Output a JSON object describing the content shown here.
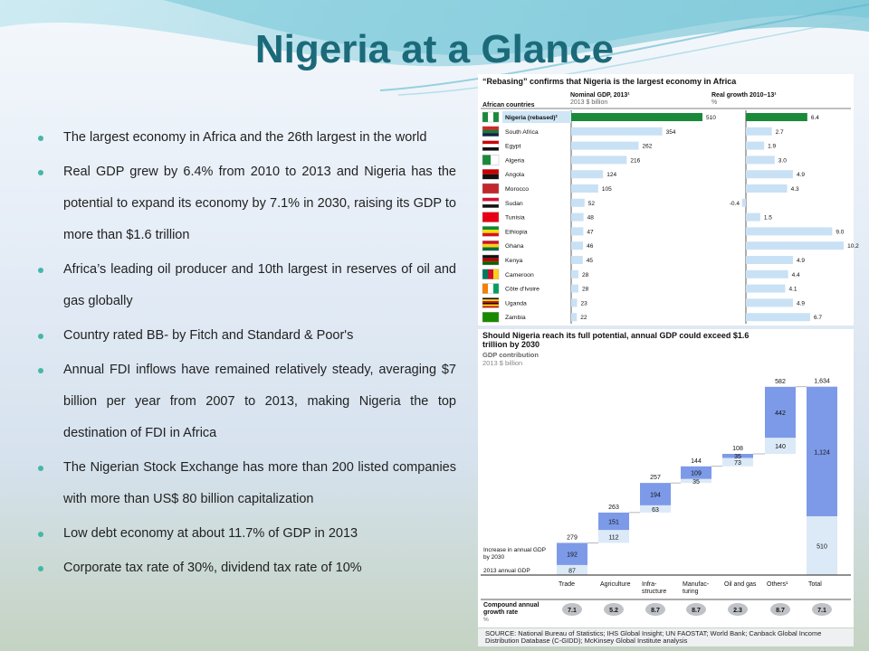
{
  "title": "Nigeria at a Glance",
  "bullets": [
    "The largest economy in Africa and the 26th largest in the world",
    "Real GDP grew by 6.4% from 2010 to 2013 and Nigeria has the potential to expand its economy by 7.1% in 2030, raising its GDP to more than $1.6 trillion",
    "Africa’s leading oil producer and 10th largest in reserves of oil and gas globally",
    "Country rated BB- by Fitch and Standard & Poor's",
    "Annual FDI inflows have remained relatively steady, averaging $7 billion per year from 2007 to 2013, making Nigeria the top destination of FDI in Africa",
    "The Nigerian Stock Exchange has more than 200 listed companies with more than US$ 80 billion capitalization",
    "Low debt economy at about 11.7% of GDP in 2013",
    "Corporate tax rate of 30%, dividend tax rate of 10%"
  ],
  "colors": {
    "title": "#1b6a7a",
    "bullet": "#45b6a8",
    "nigeria": "#1a8a3a",
    "bar_light": "#c9e1f5",
    "bar_mid": "#7d9ae8",
    "base": "#dce9f7"
  },
  "source": "SOURCE: National Bureau of Statistics; IHS Global Insight; UN FAOSTAT; World Bank; Canback Global Income Distribution Database (C-GIDD); McKinsey Global Institute analysis",
  "chart_data": [
    {
      "type": "bar",
      "title": "“Rebasing” confirms that Nigeria is the largest economy in Africa",
      "col_header": "African countries",
      "series": [
        {
          "name": "Nominal GDP, 2013¹",
          "unit": "2013 $ billion",
          "values": [
            510,
            354,
            262,
            216,
            124,
            105,
            52,
            48,
            47,
            46,
            45,
            28,
            28,
            23,
            22
          ]
        },
        {
          "name": "Real growth 2010–13¹",
          "unit": "%",
          "values": [
            6.4,
            2.7,
            1.9,
            3.0,
            4.9,
            4.3,
            -0.4,
            1.5,
            9.0,
            10.2,
            4.9,
            4.4,
            4.1,
            4.9,
            6.7
          ]
        }
      ],
      "categories": [
        "Nigeria (rebased)²",
        "South Africa",
        "Egypt",
        "Algeria",
        "Angola",
        "Morocco",
        "Sudan",
        "Tunisia",
        "Ethiopia",
        "Ghana",
        "Kenya",
        "Cameroon",
        "Côte d'Ivoire",
        "Uganda",
        "Zambia"
      ],
      "value_labels": [
        "510",
        "354",
        "262",
        "216",
        "124",
        "105",
        "52",
        "48",
        "47",
        "46",
        "45",
        "28",
        "28",
        "23",
        "22"
      ],
      "growth_labels": [
        "6.4",
        "2.7",
        "1.9",
        "3.0",
        "4.9",
        "4.3",
        "-0.4",
        "1.5",
        "9.0",
        "10.2",
        "4.9",
        "4.4",
        "4.1",
        "4.9",
        "6.7"
      ],
      "flags": [
        "NG",
        "ZA",
        "EG",
        "DZ",
        "AO",
        "MA",
        "SD",
        "TN",
        "ET",
        "GH",
        "KE",
        "CM",
        "CI",
        "UG",
        "ZM"
      ]
    },
    {
      "type": "bar",
      "title": "Should Nigeria reach its full potential, annual GDP could exceed $1.6 trillion by 2030",
      "subtitle": "GDP contribution",
      "unit": "2013 $ billion",
      "categories": [
        "Trade",
        "Agriculture",
        "Infra-structure",
        "Manufac-turing",
        "Oil and gas",
        "Others¹",
        "Total"
      ],
      "category_lines": [
        [
          "Trade"
        ],
        [
          "Agriculture"
        ],
        [
          "Infra-",
          "structure"
        ],
        [
          "Manufac-",
          "turing"
        ],
        [
          "Oil and gas"
        ],
        [
          "Others¹"
        ],
        [
          "Total"
        ]
      ],
      "series": [
        {
          "name": "2013 annual GDP",
          "values": [
            87,
            112,
            63,
            35,
            73,
            140,
            510
          ]
        },
        {
          "name": "Increase in annual GDP by 2030",
          "values": [
            192,
            151,
            194,
            109,
            35,
            442,
            1124
          ]
        }
      ],
      "legend": [
        "Increase in annual GDP",
        "by 2030",
        "2013 annual GDP"
      ],
      "totals": [
        279,
        263,
        257,
        144,
        108,
        582,
        1634
      ],
      "total_labels": [
        "279",
        "263",
        "257",
        "144",
        "108",
        "582",
        "1,634"
      ],
      "base_labels": [
        "87",
        "112",
        "63",
        "35",
        "73",
        "140",
        "510"
      ],
      "increase_labels": [
        "192",
        "151",
        "194",
        "109",
        "35",
        "442",
        "1,124"
      ],
      "growth_header": [
        "Compound annual",
        "growth rate",
        "%"
      ],
      "growth_rate": [
        "7.1",
        "5.2",
        "8.7",
        "8.7",
        "2.3",
        "8.7",
        "7.1"
      ]
    }
  ]
}
